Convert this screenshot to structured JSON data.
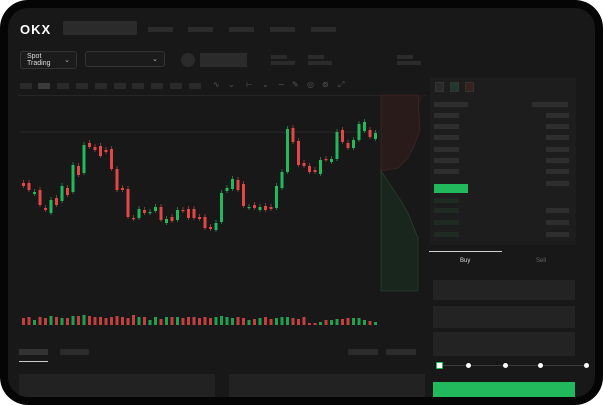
{
  "header": {
    "logo": "OKX",
    "market_selector": "Spot Trading",
    "chevron_icon": "chevron-down-icon"
  },
  "orderbook": {
    "icons": [
      "orderbook-both-icon",
      "orderbook-bids-icon",
      "orderbook-asks-icon"
    ]
  },
  "trade": {
    "tabs": [
      {
        "label": "Buy",
        "active": true
      },
      {
        "label": "Sell",
        "active": false
      }
    ],
    "leverage_slider_value": 0
  },
  "colors": {
    "up": "#22b85c",
    "down": "#e04848",
    "background": "#181818"
  },
  "chart_data": {
    "type": "candlestick",
    "candles": [
      [
        117,
        114
      ],
      [
        117,
        110
      ],
      [
        106,
        108
      ],
      [
        110,
        95
      ],
      [
        92,
        90
      ],
      [
        87,
        100
      ],
      [
        102,
        95
      ],
      [
        99,
        114
      ],
      [
        112,
        105
      ],
      [
        108,
        135
      ],
      [
        134,
        125
      ],
      [
        127,
        155
      ],
      [
        157,
        153
      ],
      [
        153,
        150
      ],
      [
        154,
        144
      ],
      [
        150,
        148
      ],
      [
        151,
        131
      ],
      [
        131,
        110
      ],
      [
        112,
        110
      ],
      [
        111,
        83
      ],
      [
        82,
        81
      ],
      [
        82,
        91
      ],
      [
        90,
        87
      ],
      [
        87,
        88
      ],
      [
        89,
        93
      ],
      [
        93,
        80
      ],
      [
        77,
        81
      ],
      [
        83,
        79
      ],
      [
        80,
        90
      ],
      [
        90,
        89
      ],
      [
        91,
        82
      ],
      [
        91,
        82
      ],
      [
        83,
        81
      ],
      [
        83,
        72
      ],
      [
        73,
        71
      ],
      [
        70,
        77
      ],
      [
        78,
        107
      ],
      [
        109,
        112
      ],
      [
        111,
        121
      ],
      [
        120,
        110
      ],
      [
        116,
        94
      ],
      [
        92,
        93
      ],
      [
        95,
        92
      ],
      [
        90,
        93
      ],
      [
        94,
        90
      ],
      [
        93,
        91
      ],
      [
        92,
        114
      ],
      [
        112,
        128
      ],
      [
        128,
        171
      ],
      [
        172,
        158
      ],
      [
        159,
        135
      ],
      [
        137,
        134
      ],
      [
        134,
        128
      ],
      [
        130,
        128
      ],
      [
        126,
        140
      ],
      [
        141,
        140
      ],
      [
        138,
        141
      ],
      [
        141,
        168
      ],
      [
        170,
        158
      ],
      [
        157,
        152
      ],
      [
        152,
        160
      ],
      [
        160,
        176
      ],
      [
        169,
        178
      ],
      [
        170,
        163
      ],
      [
        161,
        167
      ]
    ],
    "volumes": [
      7,
      8,
      5,
      8,
      7,
      9,
      8,
      7,
      7,
      9,
      9,
      10,
      9,
      8,
      8,
      7,
      8,
      9,
      8,
      7,
      10,
      8,
      8,
      5,
      8,
      6,
      8,
      8,
      8,
      7,
      8,
      8,
      7,
      8,
      7,
      8,
      9,
      8,
      7,
      8,
      7,
      5,
      6,
      7,
      8,
      6,
      7,
      8,
      8,
      7,
      6,
      8,
      2,
      2,
      3,
      5,
      5,
      6,
      6,
      7,
      7,
      7,
      5,
      4,
      3
    ]
  }
}
